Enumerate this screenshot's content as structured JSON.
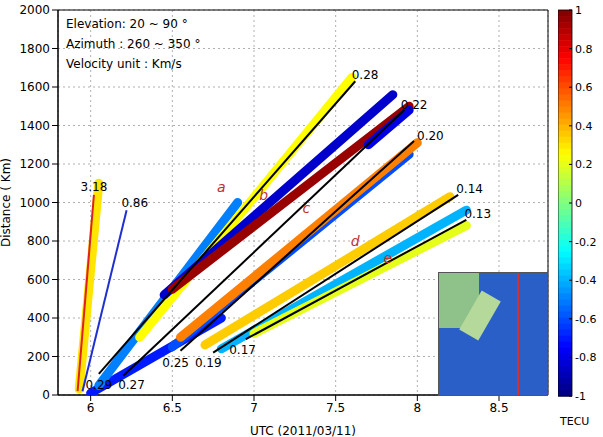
{
  "chart_data": {
    "type": "line",
    "x_label": "UTC (2011/03/11)",
    "y_label": "Distance ( Km)",
    "xlim": [
      5.8,
      8.8
    ],
    "xticks": [
      6,
      6.5,
      7,
      7.5,
      8,
      8.5
    ],
    "ylim": [
      0,
      2000
    ],
    "yticks": [
      0,
      200,
      400,
      600,
      800,
      1000,
      1200,
      1400,
      1600,
      1800,
      2000
    ],
    "grid": true,
    "text_box": [
      "Elevation: 20 ~ 90 °",
      "Azimuth : 260 ~ 350 °",
      "Velocity unit : Km/s"
    ],
    "tec_streaks": [
      {
        "x": [
          5.93,
          6.05
        ],
        "y": [
          30,
          1100
        ],
        "tec": 0.3
      },
      {
        "x": [
          6.0,
          6.8
        ],
        "y": [
          10,
          400
        ],
        "tec": -0.7
      },
      {
        "x": [
          6.05,
          6.9
        ],
        "y": [
          50,
          1000
        ],
        "tec": -0.5
      },
      {
        "x": [
          6.3,
          7.6
        ],
        "y": [
          300,
          1650
        ],
        "tec": 0.25
      },
      {
        "x": [
          6.45,
          7.85
        ],
        "y": [
          520,
          1560
        ],
        "tec": -0.85
      },
      {
        "x": [
          6.5,
          7.95
        ],
        "y": [
          550,
          1500
        ],
        "tec": 0.95
      },
      {
        "x": [
          6.5,
          7.95
        ],
        "y": [
          250,
          1250
        ],
        "tec": -0.6
      },
      {
        "x": [
          6.55,
          8.0
        ],
        "y": [
          300,
          1310
        ],
        "tec": 0.5
      },
      {
        "x": [
          6.7,
          8.2
        ],
        "y": [
          260,
          1030
        ],
        "tec": 0.35
      },
      {
        "x": [
          6.8,
          8.3
        ],
        "y": [
          240,
          960
        ],
        "tec": -0.4
      },
      {
        "x": [
          7.0,
          8.3
        ],
        "y": [
          320,
          880
        ],
        "tec": 0.2
      },
      {
        "x": [
          7.7,
          7.95
        ],
        "y": [
          1300,
          1480
        ],
        "tec": -0.8
      }
    ],
    "series": [
      {
        "color": "#e02020",
        "x": [
          5.92,
          6.02
        ],
        "y": [
          20,
          1040
        ]
      },
      {
        "color": "#2030d0",
        "x": [
          5.95,
          6.22
        ],
        "y": [
          20,
          960
        ]
      },
      {
        "color": "#000000",
        "x": [
          6.05,
          7.62
        ],
        "y": [
          110,
          1630
        ]
      },
      {
        "color": "#000000",
        "x": [
          6.2,
          7.92
        ],
        "y": [
          100,
          1480
        ]
      },
      {
        "color": "#000000",
        "x": [
          6.55,
          7.98
        ],
        "y": [
          230,
          1320
        ]
      },
      {
        "color": "#000000",
        "x": [
          6.75,
          8.25
        ],
        "y": [
          220,
          1040
        ]
      },
      {
        "color": "#000000",
        "x": [
          6.95,
          8.3
        ],
        "y": [
          290,
          910
        ]
      }
    ],
    "annotations": [
      {
        "text": "3.18",
        "x": 6.02,
        "y": 1080,
        "color": "#000000"
      },
      {
        "text": "0.86",
        "x": 6.27,
        "y": 1000,
        "color": "#000000"
      },
      {
        "text": "0.28",
        "x": 7.68,
        "y": 1665,
        "color": "#000000"
      },
      {
        "text": "0.22",
        "x": 7.98,
        "y": 1510,
        "color": "#000000"
      },
      {
        "text": "0.20",
        "x": 8.08,
        "y": 1345,
        "color": "#000000"
      },
      {
        "text": "0.14",
        "x": 8.32,
        "y": 1070,
        "color": "#000000"
      },
      {
        "text": "0.13",
        "x": 8.37,
        "y": 940,
        "color": "#000000"
      },
      {
        "text": "0.29",
        "x": 6.05,
        "y": 55,
        "color": "#000000"
      },
      {
        "text": "0.27",
        "x": 6.25,
        "y": 55,
        "color": "#000000"
      },
      {
        "text": "0.25",
        "x": 6.52,
        "y": 170,
        "color": "#000000"
      },
      {
        "text": "0.19",
        "x": 6.72,
        "y": 170,
        "color": "#000000"
      },
      {
        "text": "0.17",
        "x": 6.93,
        "y": 235,
        "color": "#000000"
      },
      {
        "text": "a",
        "x": 6.8,
        "y": 1080,
        "color": "#c03030"
      },
      {
        "text": "b",
        "x": 7.06,
        "y": 1040,
        "color": "#c03030"
      },
      {
        "text": "c",
        "x": 7.32,
        "y": 970,
        "color": "#c03030"
      },
      {
        "text": "d",
        "x": 7.62,
        "y": 800,
        "color": "#c03030"
      },
      {
        "text": "e",
        "x": 7.82,
        "y": 710,
        "color": "#c03030"
      }
    ],
    "colorbar": {
      "range": [
        -1,
        1
      ],
      "ticks": [
        1,
        0.8,
        0.6,
        0.4,
        0.2,
        0,
        -0.2,
        -0.4,
        -0.6,
        -0.8,
        -1
      ],
      "label": "TECU"
    }
  }
}
